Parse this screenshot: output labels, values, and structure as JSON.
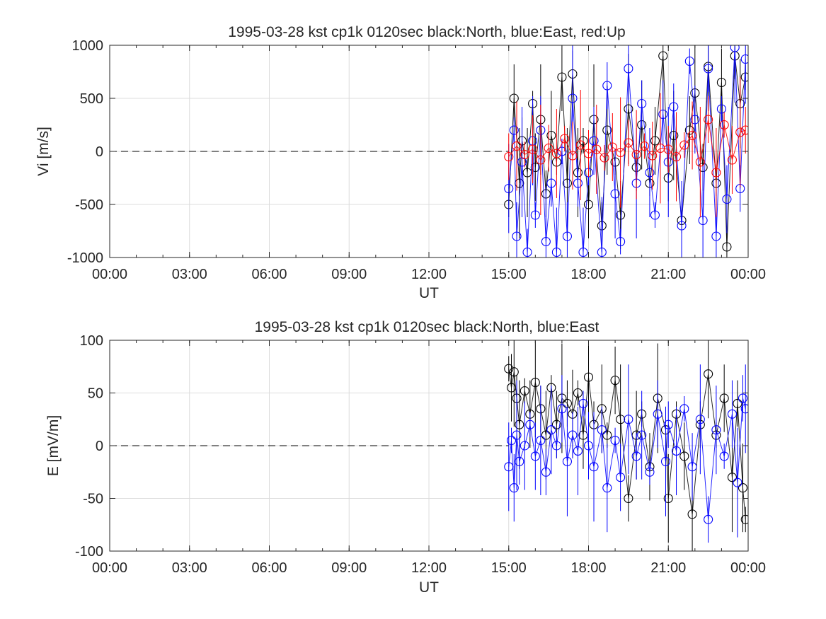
{
  "chart_data": [
    {
      "type": "scatter",
      "title": "1995-03-28 kst cp1k 0120sec black:North, blue:East, red:Up",
      "xlabel": "UT",
      "ylabel": "Vi [m/s]",
      "xlim": [
        0,
        24
      ],
      "ylim": [
        -1000,
        1000
      ],
      "grid": true,
      "reference_line": 0,
      "x_tick_labels": [
        "00:00",
        "03:00",
        "06:00",
        "09:00",
        "12:00",
        "15:00",
        "18:00",
        "21:00",
        "00:00"
      ],
      "y_tick_values": [
        -1000,
        -500,
        0,
        500,
        1000
      ],
      "y_tick_labels": [
        "-1000",
        "-500",
        "0",
        "500",
        "1000"
      ],
      "colors": {
        "North": "#000000",
        "East": "#0000ff",
        "Up": "#ff0000"
      },
      "series": [
        {
          "color": "#000000",
          "x": [
            15.0,
            15.2,
            15.4,
            15.5,
            15.7,
            15.9,
            16.0,
            16.2,
            16.4,
            16.6,
            16.8,
            17.0,
            17.2,
            17.4,
            17.6,
            17.8,
            18.0,
            18.2,
            18.5,
            18.7,
            19.0,
            19.2,
            19.5,
            19.8,
            20.0,
            20.3,
            20.5,
            20.8,
            21.0,
            21.2,
            21.5,
            21.8,
            22.0,
            22.3,
            22.5,
            22.8,
            23.0,
            23.2,
            23.5,
            23.7,
            23.9
          ],
          "y": [
            -500,
            500,
            -300,
            100,
            -200,
            450,
            -150,
            300,
            -400,
            150,
            -100,
            700,
            -300,
            730,
            -200,
            100,
            -500,
            300,
            -700,
            200,
            -100,
            -600,
            400,
            -150,
            250,
            -300,
            100,
            900,
            -250,
            150,
            -650,
            200,
            550,
            -150,
            800,
            -300,
            650,
            -900,
            900,
            450,
            700
          ]
        },
        {
          "color": "#0000ff",
          "x": [
            15.0,
            15.2,
            15.3,
            15.5,
            15.7,
            15.9,
            16.0,
            16.2,
            16.4,
            16.6,
            16.8,
            17.0,
            17.2,
            17.4,
            17.6,
            17.8,
            18.0,
            18.2,
            18.5,
            18.7,
            19.0,
            19.2,
            19.5,
            19.8,
            20.0,
            20.3,
            20.5,
            20.8,
            21.0,
            21.2,
            21.5,
            21.8,
            22.0,
            22.3,
            22.5,
            22.8,
            23.0,
            23.2,
            23.5,
            23.7,
            23.9
          ],
          "y": [
            -350,
            200,
            -800,
            -100,
            -950,
            100,
            -600,
            200,
            -850,
            -300,
            -950,
            0,
            -800,
            500,
            -300,
            -950,
            -200,
            100,
            -950,
            620,
            -400,
            -850,
            780,
            -300,
            450,
            -200,
            -600,
            350,
            -100,
            420,
            -700,
            850,
            300,
            -650,
            780,
            -800,
            400,
            -450,
            980,
            -350,
            870
          ]
        },
        {
          "color": "#ff0000",
          "x": [
            15.0,
            15.3,
            15.6,
            15.9,
            16.2,
            16.5,
            16.8,
            17.1,
            17.4,
            17.7,
            18.0,
            18.3,
            18.6,
            18.9,
            19.2,
            19.5,
            19.8,
            20.1,
            20.4,
            20.7,
            21.0,
            21.3,
            21.6,
            21.9,
            22.2,
            22.5,
            22.8,
            23.1,
            23.4,
            23.7,
            23.9
          ],
          "y": [
            -50,
            50,
            -30,
            20,
            -80,
            30,
            -20,
            120,
            -40,
            60,
            -20,
            20,
            -60,
            40,
            -10,
            80,
            -30,
            50,
            -40,
            30,
            20,
            -50,
            60,
            150,
            -100,
            300,
            -200,
            250,
            -80,
            180,
            200
          ]
        }
      ]
    },
    {
      "type": "scatter",
      "title": "1995-03-28 kst cp1k 0120sec black:North, blue:East",
      "xlabel": "UT",
      "ylabel": "E [mV/m]",
      "xlim": [
        0,
        24
      ],
      "ylim": [
        -100,
        100
      ],
      "grid": true,
      "reference_line": 0,
      "x_tick_labels": [
        "00:00",
        "03:00",
        "06:00",
        "09:00",
        "12:00",
        "15:00",
        "18:00",
        "21:00",
        "00:00"
      ],
      "y_tick_values": [
        -100,
        -50,
        0,
        50,
        100
      ],
      "y_tick_labels": [
        "-100",
        "-50",
        "0",
        "50",
        "100"
      ],
      "colors": {
        "North": "#000000",
        "East": "#0000ff"
      },
      "series": [
        {
          "color": "#000000",
          "x": [
            15.0,
            15.1,
            15.2,
            15.3,
            15.4,
            15.6,
            15.8,
            16.0,
            16.2,
            16.4,
            16.6,
            16.8,
            17.0,
            17.2,
            17.4,
            17.6,
            17.8,
            18.0,
            18.2,
            18.5,
            18.7,
            19.0,
            19.2,
            19.5,
            19.8,
            20.0,
            20.3,
            20.6,
            20.9,
            21.0,
            21.3,
            21.6,
            21.9,
            22.2,
            22.5,
            22.8,
            23.1,
            23.4,
            23.6,
            23.8,
            23.9
          ],
          "y": [
            73,
            55,
            70,
            45,
            20,
            52,
            30,
            60,
            35,
            10,
            55,
            20,
            45,
            40,
            30,
            50,
            10,
            65,
            20,
            35,
            10,
            62,
            25,
            -50,
            10,
            30,
            -20,
            45,
            15,
            -50,
            30,
            -10,
            -65,
            20,
            68,
            10,
            45,
            -30,
            40,
            -40,
            -70
          ]
        },
        {
          "color": "#0000ff",
          "x": [
            15.0,
            15.1,
            15.2,
            15.3,
            15.4,
            15.6,
            15.8,
            16.0,
            16.2,
            16.4,
            16.6,
            16.8,
            17.0,
            17.2,
            17.4,
            17.6,
            17.8,
            18.0,
            18.2,
            18.5,
            18.7,
            19.0,
            19.2,
            19.5,
            19.8,
            20.0,
            20.3,
            20.6,
            20.9,
            21.0,
            21.3,
            21.6,
            21.9,
            22.2,
            22.5,
            22.8,
            23.1,
            23.4,
            23.6,
            23.8,
            23.9
          ],
          "y": [
            -20,
            5,
            -40,
            10,
            -15,
            0,
            20,
            -10,
            5,
            -25,
            15,
            0,
            35,
            -15,
            10,
            -5,
            40,
            0,
            -20,
            15,
            -40,
            5,
            -30,
            25,
            -10,
            10,
            -25,
            30,
            -15,
            20,
            -5,
            35,
            -20,
            25,
            -70,
            15,
            -10,
            30,
            -35,
            45,
            35
          ]
        }
      ]
    }
  ]
}
